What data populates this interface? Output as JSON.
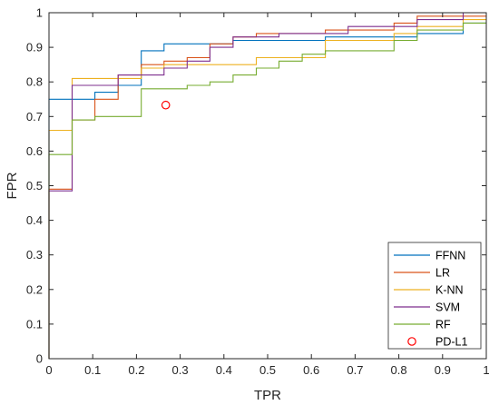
{
  "chart_data": {
    "type": "line",
    "xlabel": "TPR",
    "ylabel": "FPR",
    "xlim": [
      0,
      1
    ],
    "ylim": [
      0,
      1
    ],
    "x_ticks": [
      "0",
      "0.1",
      "0.2",
      "0.3",
      "0.4",
      "0.5",
      "0.6",
      "0.7",
      "0.8",
      "0.9",
      "1"
    ],
    "y_ticks": [
      "0",
      "0.1",
      "0.2",
      "0.3",
      "0.4",
      "0.5",
      "0.6",
      "0.7",
      "0.8",
      "0.9",
      "1"
    ],
    "grid": false,
    "legend_position": "bottom-right",
    "series": [
      {
        "name": "FFNN",
        "color": "#0072BD",
        "x": [
          0,
          0,
          0,
          0.053,
          0.053,
          0.105,
          0.105,
          0.158,
          0.158,
          0.211,
          0.211,
          0.263,
          0.263,
          0.316,
          0.316,
          0.421,
          0.421,
          0.632,
          0.632,
          0.842,
          0.842,
          0.947,
          0.947,
          1
        ],
        "y": [
          0,
          0.66,
          0.75,
          0.75,
          0.75,
          0.75,
          0.77,
          0.77,
          0.79,
          0.79,
          0.89,
          0.89,
          0.91,
          0.91,
          0.91,
          0.91,
          0.92,
          0.92,
          0.93,
          0.93,
          0.94,
          0.94,
          0.97,
          0.97
        ]
      },
      {
        "name": "LR",
        "color": "#D95319",
        "x": [
          0,
          0,
          0.053,
          0.053,
          0.105,
          0.105,
          0.158,
          0.158,
          0.211,
          0.211,
          0.263,
          0.263,
          0.316,
          0.316,
          0.368,
          0.368,
          0.421,
          0.421,
          0.474,
          0.474,
          0.632,
          0.632,
          0.789,
          0.789,
          0.842,
          0.842,
          1
        ],
        "y": [
          0,
          0.49,
          0.49,
          0.69,
          0.69,
          0.75,
          0.75,
          0.82,
          0.82,
          0.85,
          0.85,
          0.86,
          0.86,
          0.87,
          0.87,
          0.91,
          0.91,
          0.93,
          0.93,
          0.94,
          0.94,
          0.95,
          0.95,
          0.97,
          0.97,
          0.99,
          0.99
        ]
      },
      {
        "name": "K-NN",
        "color": "#EDB120",
        "x": [
          0,
          0,
          0.053,
          0.053,
          0.158,
          0.158,
          0.211,
          0.211,
          0.263,
          0.263,
          0.474,
          0.474,
          0.632,
          0.632,
          0.789,
          0.789,
          0.842,
          0.842,
          0.947,
          0.947,
          1
        ],
        "y": [
          0,
          0.66,
          0.66,
          0.81,
          0.81,
          0.81,
          0.81,
          0.84,
          0.84,
          0.85,
          0.85,
          0.87,
          0.87,
          0.92,
          0.92,
          0.94,
          0.94,
          0.96,
          0.96,
          0.98,
          0.98
        ]
      },
      {
        "name": "SVM",
        "color": "#7E2F8E",
        "x": [
          0,
          0,
          0.053,
          0.053,
          0.158,
          0.158,
          0.263,
          0.263,
          0.316,
          0.316,
          0.368,
          0.368,
          0.421,
          0.421,
          0.526,
          0.526,
          0.684,
          0.684,
          0.842,
          0.842,
          0.947,
          0.947,
          1
        ],
        "y": [
          0,
          0.485,
          0.485,
          0.79,
          0.79,
          0.82,
          0.82,
          0.84,
          0.84,
          0.86,
          0.86,
          0.9,
          0.9,
          0.93,
          0.93,
          0.94,
          0.94,
          0.96,
          0.96,
          0.98,
          0.98,
          1.0,
          1.0
        ]
      },
      {
        "name": "RF",
        "color": "#77AC30",
        "x": [
          0,
          0,
          0.053,
          0.053,
          0.105,
          0.105,
          0.211,
          0.211,
          0.316,
          0.316,
          0.368,
          0.368,
          0.421,
          0.421,
          0.474,
          0.474,
          0.526,
          0.526,
          0.579,
          0.579,
          0.632,
          0.632,
          0.789,
          0.789,
          0.842,
          0.842,
          0.947,
          0.947,
          1
        ],
        "y": [
          0,
          0.59,
          0.59,
          0.69,
          0.69,
          0.7,
          0.7,
          0.78,
          0.78,
          0.79,
          0.79,
          0.8,
          0.8,
          0.82,
          0.82,
          0.84,
          0.84,
          0.86,
          0.86,
          0.88,
          0.88,
          0.89,
          0.89,
          0.92,
          0.92,
          0.95,
          0.95,
          0.97,
          0.97
        ]
      }
    ],
    "points": [
      {
        "name": "PD-L1",
        "x": 0.267,
        "y": 0.733,
        "marker": "circle",
        "color": "#FF0000"
      }
    ]
  }
}
